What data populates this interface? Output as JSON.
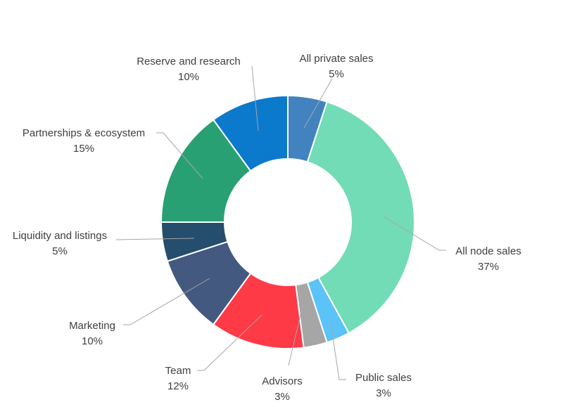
{
  "chart_data": {
    "type": "pie",
    "donut": true,
    "title": "",
    "slices": [
      {
        "label": "All private sales",
        "value": 5,
        "value_label": "5%",
        "color": "#4283bf"
      },
      {
        "label": "All node sales",
        "value": 37,
        "value_label": "37%",
        "color": "#72dcb7"
      },
      {
        "label": "Public sales",
        "value": 3,
        "value_label": "3%",
        "color": "#5bc3f8"
      },
      {
        "label": "Advisors",
        "value": 3,
        "value_label": "3%",
        "color": "#a6a6a6"
      },
      {
        "label": "Team",
        "value": 12,
        "value_label": "12%",
        "color": "#fd3a46"
      },
      {
        "label": "Marketing",
        "value": 10,
        "value_label": "10%",
        "color": "#44597f"
      },
      {
        "label": "Liquidity and listings",
        "value": 5,
        "value_label": "5%",
        "color": "#254d6d"
      },
      {
        "label": "Partnerships & ecosystem",
        "value": 15,
        "value_label": "15%",
        "color": "#28a074"
      },
      {
        "label": "Reserve and research",
        "value": 10,
        "value_label": "10%",
        "color": "#0b79cc"
      }
    ],
    "legend": "none",
    "data_labels": "outside with leader lines"
  }
}
